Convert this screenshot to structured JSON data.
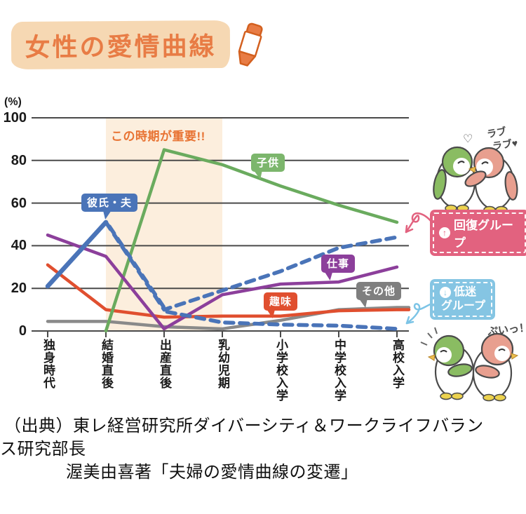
{
  "title": {
    "text": "女性の愛情曲線"
  },
  "chart_data": {
    "type": "line",
    "title": "女性の愛情曲線",
    "ylabel": "(%)",
    "ylim": [
      0,
      100
    ],
    "yticks": [
      0,
      20,
      40,
      60,
      80,
      100
    ],
    "grid": true,
    "legend_position": "inline-bubbles",
    "categories": [
      "独身時代",
      "結婚直後",
      "出産直後",
      "乳幼児期",
      "小学校入学",
      "中学校入学",
      "高校入学"
    ],
    "series": [
      {
        "name": "その他",
        "color": "#8a8a8a",
        "style": "solid",
        "values": [
          4.5,
          4.5,
          2,
          1,
          5,
          10,
          11
        ]
      },
      {
        "name": "趣味",
        "color": "#e04f2f",
        "style": "solid",
        "values": [
          31,
          10,
          6.5,
          7,
          7,
          9.5,
          10
        ]
      },
      {
        "name": "子供",
        "color": "#6aab5e",
        "style": "solid",
        "values": [
          null,
          0,
          85,
          78,
          68,
          59,
          51
        ]
      },
      {
        "name": "仕事",
        "color": "#8c3f9b",
        "style": "solid",
        "values": [
          45,
          35,
          1,
          17,
          22,
          23,
          30
        ]
      },
      {
        "name": "低迷グループ",
        "color": "#4a74b8",
        "style": "dashed",
        "values": [
          null,
          51,
          10,
          4,
          3,
          2.5,
          1
        ]
      },
      {
        "name": "回復グループ",
        "color": "#4a74b8",
        "style": "dashed",
        "values": [
          null,
          51,
          10,
          19,
          28,
          39,
          44
        ]
      },
      {
        "name": "彼氏・夫",
        "color": "#4a74b8",
        "style": "solid",
        "values": [
          21,
          51,
          null,
          null,
          null,
          null,
          null
        ]
      }
    ],
    "highlight_band": {
      "from_category": "結婚直後",
      "to_category": "乳幼児期",
      "color": "#fceedd"
    },
    "annotations": {
      "important_period": "この時期が重要!!"
    }
  },
  "groups": {
    "recovery": {
      "label": "回復グループ",
      "icon": "↑",
      "color": "#e2627f"
    },
    "slump": {
      "label_line1": "低迷",
      "label_line2": "グループ",
      "icon": "↓",
      "color": "#85c5e3"
    }
  },
  "penguins": {
    "love_heart": "♡",
    "love_caption_line1": "ラブ",
    "love_caption_line2": "ラブ♥",
    "pout_caption": "ぷいっ！"
  },
  "source": {
    "line1": "（出典）東レ経営研究所ダイバーシティ＆ワークライフバラン",
    "line2": "ス研究部長",
    "line3": "渥美由喜著「夫婦の愛情曲線の変遷」"
  }
}
